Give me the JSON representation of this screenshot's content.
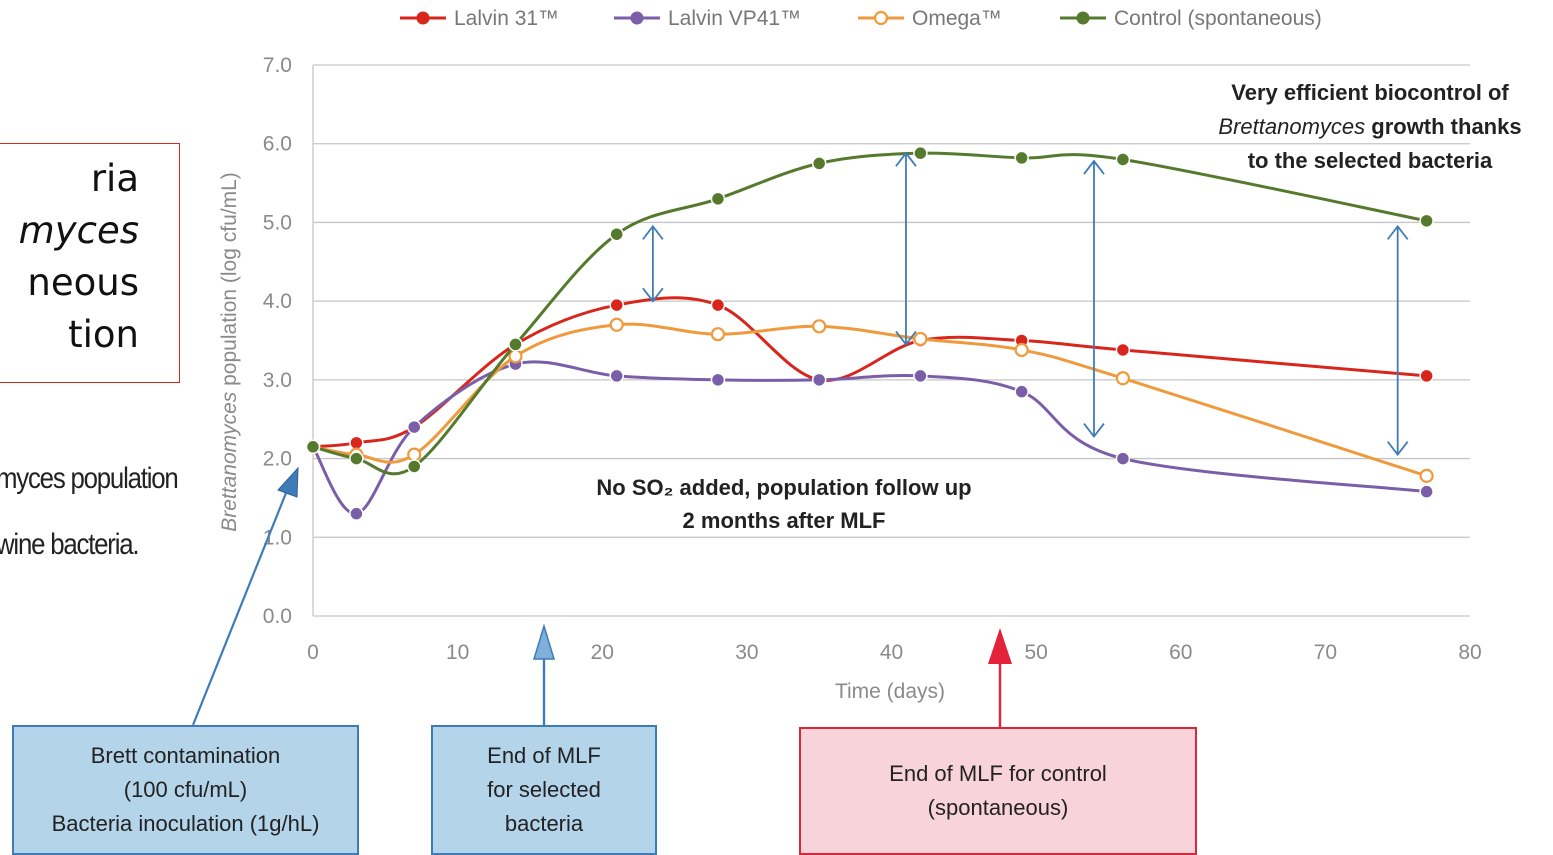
{
  "side_panel": {
    "lines": [
      {
        "text": "ria",
        "italic": false
      },
      {
        "text": "myces",
        "italic": true
      },
      {
        "text": "neous",
        "italic": false
      },
      {
        "text": "tion",
        "italic": false
      }
    ],
    "caption_lines": [
      "myces population",
      "wine bacteria."
    ]
  },
  "callouts": {
    "contamination": [
      "Brett contamination",
      "(100 cfu/mL)",
      "Bacteria inoculation (1g/hL)"
    ],
    "mlf_selected": [
      "End of MLF",
      "for selected",
      "bacteria"
    ],
    "mlf_control": [
      "End of MLF for control",
      "(spontaneous)"
    ]
  },
  "annotations": {
    "biocontrol": [
      "Very efficient biocontrol of",
      "Brettanomyces growth thanks",
      "to the selected bacteria"
    ],
    "biocontrol_italic_word": "Brettanomyces",
    "no_so2": [
      "No SO₂ added, population follow up",
      "2 months after MLF"
    ]
  },
  "colors": {
    "lalvin31": "#d9261c",
    "vp41": "#7b5ea8",
    "omega": "#ef9a3c",
    "control": "#557a2e",
    "arrow": "#3d7cb9",
    "grid": "#c6c6c6",
    "tick": "#8a8a8a"
  },
  "chart_data": {
    "type": "line",
    "xlabel": "Time (days)",
    "ylabel": "Brettanomyces population (log cfu/mL)",
    "ylabel_italic_word": "Brettanomyces",
    "xlim": [
      0,
      80
    ],
    "ylim": [
      0,
      7
    ],
    "xticks": [
      "0",
      "10",
      "20",
      "30",
      "40",
      "50",
      "60",
      "70",
      "80"
    ],
    "yticks": [
      "0.0",
      "1.0",
      "2.0",
      "3.0",
      "4.0",
      "5.0",
      "6.0",
      "7.0"
    ],
    "grid": "horizontal",
    "legend_position": "top",
    "series": [
      {
        "name": "Lalvin 31™",
        "color_key": "lalvin31",
        "marker": "filled",
        "x": [
          0,
          3,
          7,
          14,
          21,
          28,
          35,
          42,
          49,
          56,
          77
        ],
        "y": [
          2.15,
          2.2,
          2.4,
          3.45,
          3.95,
          3.95,
          3.0,
          3.5,
          3.5,
          3.38,
          3.05
        ]
      },
      {
        "name": "Lalvin VP41™",
        "color_key": "vp41",
        "marker": "filled",
        "x": [
          0,
          3,
          7,
          14,
          21,
          28,
          35,
          42,
          49,
          56,
          77
        ],
        "y": [
          2.15,
          1.3,
          2.4,
          3.2,
          3.05,
          3.0,
          3.0,
          3.05,
          2.85,
          2.0,
          1.58
        ]
      },
      {
        "name": "Omega™",
        "color_key": "omega",
        "marker": "open",
        "x": [
          0,
          3,
          7,
          14,
          21,
          28,
          35,
          42,
          49,
          56,
          77
        ],
        "y": [
          2.15,
          2.05,
          2.05,
          3.3,
          3.7,
          3.58,
          3.68,
          3.52,
          3.38,
          3.02,
          1.78
        ]
      },
      {
        "name": "Control (spontaneous)",
        "color_key": "control",
        "marker": "filled",
        "x": [
          0,
          3,
          7,
          14,
          21,
          28,
          35,
          42,
          49,
          56,
          77
        ],
        "y": [
          2.15,
          2.0,
          1.9,
          3.45,
          4.85,
          5.3,
          5.75,
          5.88,
          5.82,
          5.8,
          5.02
        ]
      }
    ],
    "difference_arrows": [
      {
        "x": 23.5,
        "y_from": 4.95,
        "y_to": 4.0
      },
      {
        "x": 41,
        "y_from": 5.88,
        "y_to": 3.45
      },
      {
        "x": 54,
        "y_from": 5.78,
        "y_to": 2.28
      },
      {
        "x": 75,
        "y_from": 4.95,
        "y_to": 2.05
      }
    ],
    "event_markers": [
      {
        "x": 0,
        "label_key": "contamination"
      },
      {
        "x": 16,
        "label_key": "mlf_selected"
      },
      {
        "x": 47.5,
        "label_key": "mlf_control"
      }
    ]
  }
}
